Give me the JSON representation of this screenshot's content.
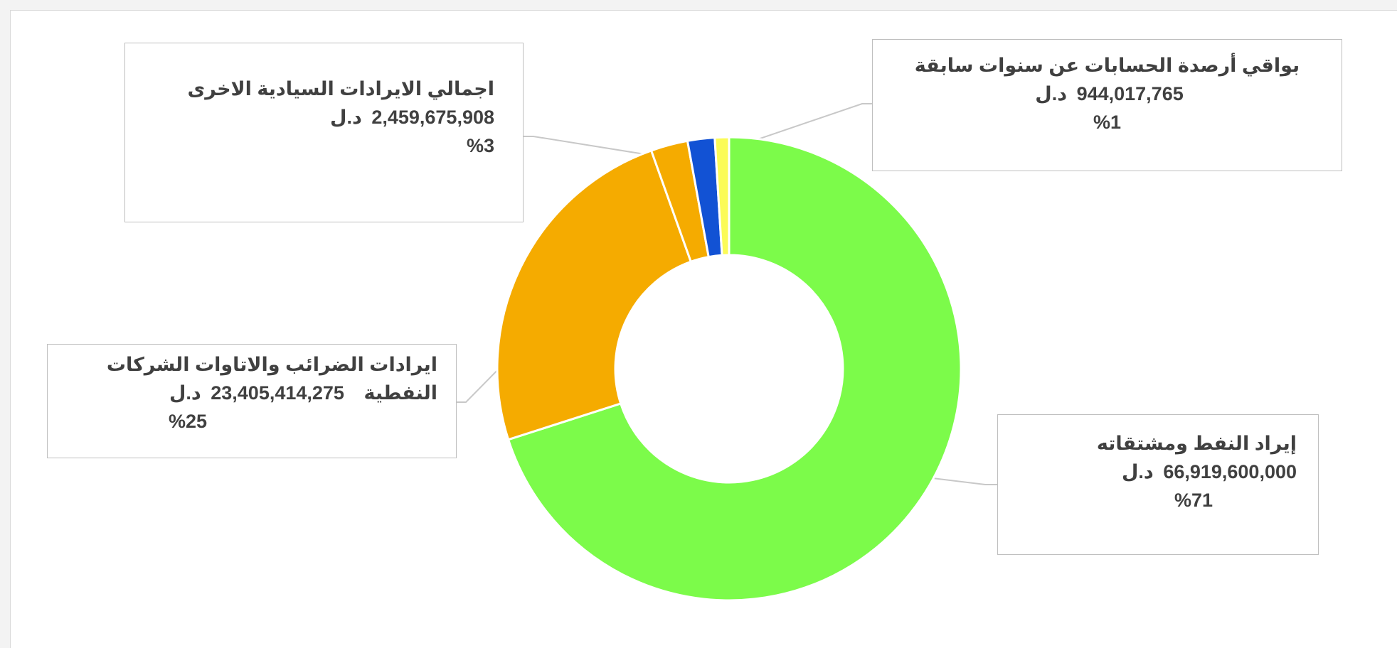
{
  "chart_data": {
    "type": "donut",
    "start_angle_deg": 0,
    "direction": "clockwise",
    "slices": [
      {
        "key": "oil",
        "name": "إيراد النفط ومشتقاته",
        "value": 66919600000,
        "value_text": "66,919,600,000",
        "unit": "د.ل",
        "percent_text": "%71",
        "color": "#7cfb4a"
      },
      {
        "key": "tax",
        "name": "ايرادات الضرائب والاتاوات الشركات النفطية",
        "value": 23405414275,
        "value_text": "23,405,414,275",
        "unit": "د.ل",
        "percent_text": "%25",
        "color": "#f5ab00"
      },
      {
        "key": "sovereign",
        "name": "اجمالي الايرادات السيادية الاخرى",
        "value": 2459675908,
        "value_text": "2,459,675,908",
        "unit": "د.ل",
        "percent_text": "%3",
        "color": "#f5ab00"
      },
      {
        "key": "blue",
        "name": "",
        "value": 1800000000,
        "value_text": "",
        "unit": "",
        "percent_text": "",
        "color": "#1252d4"
      },
      {
        "key": "balances",
        "name": "بواقي أرصدة الحسابات عن سنوات سابقة",
        "value": 944017765,
        "value_text": "944,017,765",
        "unit": "د.ل",
        "percent_text": "%1",
        "color": "#fbfb57"
      }
    ],
    "legend": "none",
    "title": ""
  }
}
